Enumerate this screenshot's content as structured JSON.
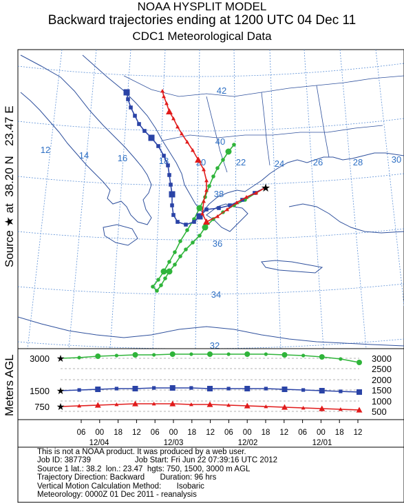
{
  "titles": {
    "line1": "NOAA HYSPLIT MODEL",
    "line2": "Backward trajectories ending at 1200 UTC 04 Dec 11",
    "line3": "CDC1 Meteorological Data"
  },
  "side_label": {
    "source": "Source",
    "at": "at",
    "lat": "38.20 N",
    "lon": "23.47 E"
  },
  "agl_label": "Meters AGL",
  "map": {
    "lon_labels": [
      "12",
      "14",
      "16",
      "18",
      "20",
      "22",
      "24",
      "26",
      "28",
      "30"
    ],
    "lat_labels": [
      "42",
      "40",
      "38",
      "36",
      "34",
      "32"
    ],
    "colors": {
      "red": "#e11b1b",
      "blue": "#2a43a6",
      "green": "#2fb43a",
      "grid": "#5b8fd6",
      "coast": "#2d4f9c"
    }
  },
  "height_panel": {
    "left_ticks": [
      "3000",
      "1500",
      "750"
    ],
    "right_ticks": [
      "3000",
      "2500",
      "2000",
      "1500",
      "1000",
      "500"
    ]
  },
  "time_axis": {
    "hours": [
      "06",
      "00",
      "18",
      "12",
      "06",
      "00",
      "18",
      "12",
      "06",
      "00",
      "18",
      "12",
      "06",
      "00",
      "18",
      "12"
    ],
    "dates": [
      "12/04",
      "12/03",
      "12/02",
      "12/01"
    ]
  },
  "info": {
    "line1": "This is not a NOAA product. It was produced by a web user.",
    "line2": "Job ID: 387739                    Job Start: Fri Jun 22 07:39:16 UTC 2012",
    "line3": "Source 1 lat.: 38.2  lon.: 23.47  hgts: 750, 1500, 3000 m AGL",
    "line4": "Trajectory Direction: Backward       Duration: 96 hrs",
    "line5": "Vertical Motion Calculation Method:       Isobaric",
    "line6": "Meteorology: 0000Z 01 Dec 2011 - reanalysis"
  }
}
